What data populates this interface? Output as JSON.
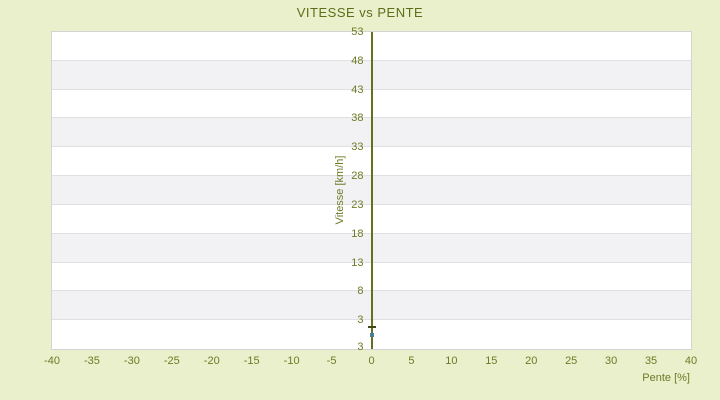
{
  "page": {
    "title": "VITESSE vs PENTE"
  },
  "chart_data": {
    "type": "scatter",
    "title": "VITESSE vs PENTE",
    "xlabel": "Pente [%]",
    "ylabel": "Vitesse [km/h]",
    "xlim": [
      -40,
      40
    ],
    "ylim": [
      -2,
      53
    ],
    "x_ticks": [
      -40,
      -35,
      -30,
      -25,
      -20,
      -15,
      -10,
      -5,
      0,
      5,
      10,
      15,
      20,
      25,
      30,
      35,
      40
    ],
    "y_ticks": [
      53,
      48,
      43,
      38,
      33,
      28,
      23,
      18,
      13,
      8,
      3
    ],
    "y_axis_bottom_edge_label": "3",
    "grid": "horizontal-alternating-bands",
    "legend_position": "none",
    "vertical_axis_line_at_x": 0,
    "points": [
      {
        "x": 0,
        "y": 1.8,
        "marker": "dash",
        "color": "#3f4a17"
      },
      {
        "x": 0,
        "y": 0.5,
        "marker": "square",
        "color": "#4b7e95"
      }
    ]
  },
  "colors": {
    "background": "#eaefcc",
    "band_light": "#ffffff",
    "band_dark": "#f2f2f4",
    "gridline": "#e0e0e2",
    "border": "#d4d4d4",
    "axis_line": "#5f731f",
    "tick_text": "#6b7c25",
    "title_text": "#5c6e1a"
  }
}
